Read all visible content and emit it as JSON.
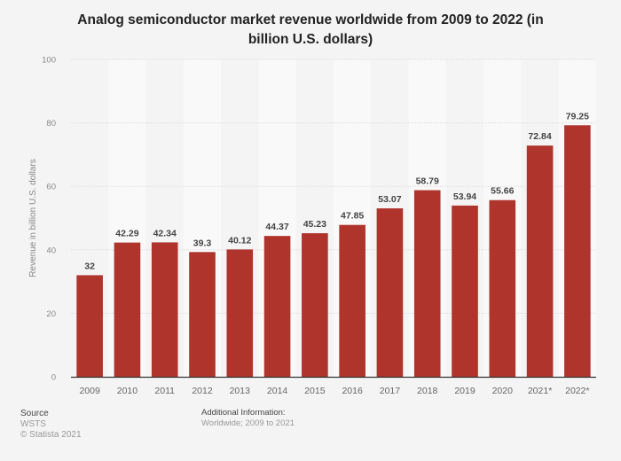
{
  "chart_data": {
    "type": "bar",
    "title": "Analog semiconductor market revenue worldwide from 2009 to 2022 (in billion U.S. dollars)",
    "title_lines": [
      "Analog semiconductor market revenue worldwide from 2009 to 2022 (in",
      "billion U.S. dollars)"
    ],
    "xlabel": "",
    "ylabel": "Revenue in billion U.S. dollars",
    "categories": [
      "2009",
      "2010",
      "2011",
      "2012",
      "2013",
      "2014",
      "2015",
      "2016",
      "2017",
      "2018",
      "2019",
      "2020",
      "2021*",
      "2022*"
    ],
    "values": [
      32,
      42.29,
      42.34,
      39.3,
      40.12,
      44.37,
      45.23,
      47.85,
      53.07,
      58.79,
      53.94,
      55.66,
      72.84,
      79.25
    ],
    "data_labels": [
      "32",
      "42.29",
      "42.34",
      "39.3",
      "40.12",
      "44.37",
      "45.23",
      "47.85",
      "53.07",
      "58.79",
      "53.94",
      "55.66",
      "72.84",
      "79.25"
    ],
    "ylim": [
      0,
      100
    ],
    "yticks": [
      0,
      20,
      40,
      60,
      80,
      100
    ],
    "grid": true,
    "bar_color": "#ae342c"
  },
  "footer": {
    "source_heading": "Source",
    "source_name": "WSTS",
    "copyright": "© Statista 2021",
    "additional_heading": "Additional Information:",
    "additional_text": "Worldwide; 2009 to 2021"
  }
}
